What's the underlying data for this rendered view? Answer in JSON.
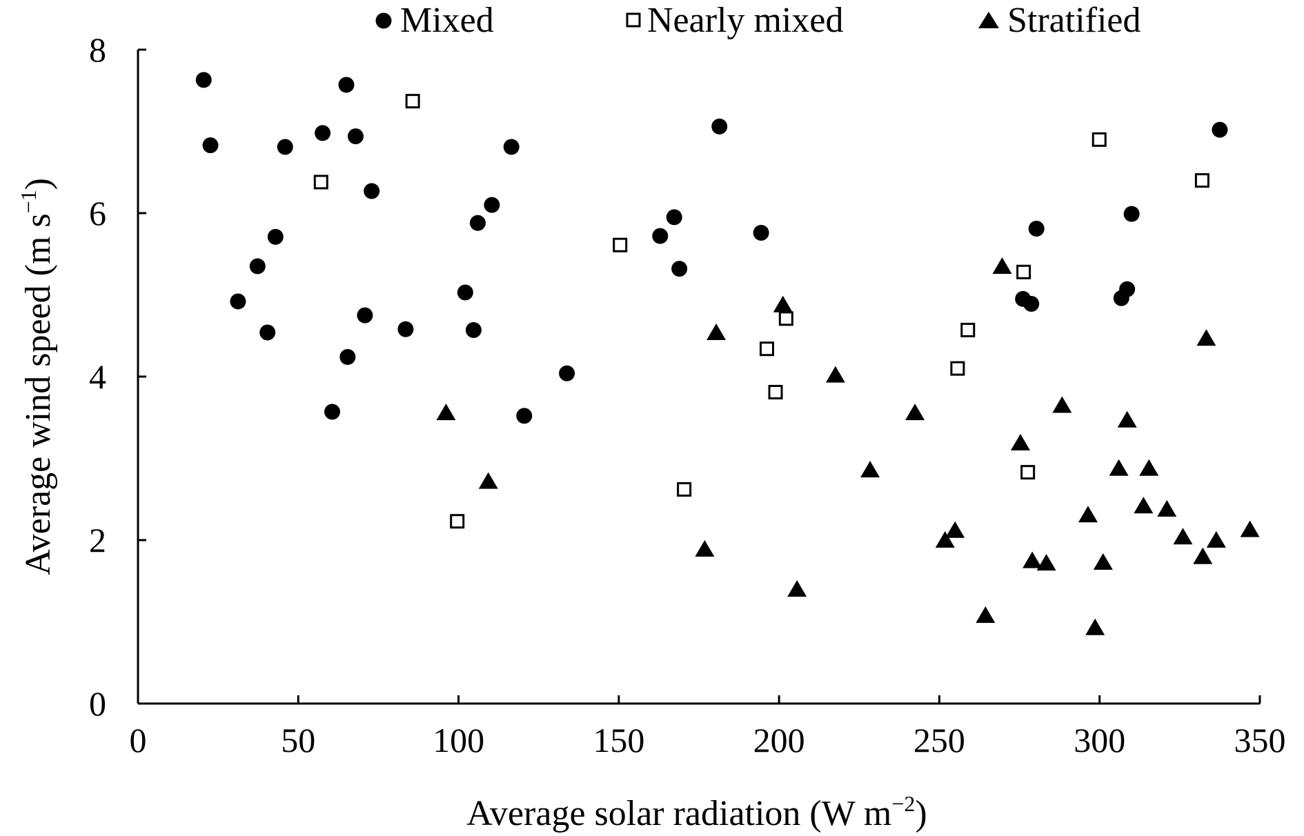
{
  "chart_data": {
    "type": "scatter",
    "title": "",
    "xlabel": "Average solar radiation (W m",
    "xlabel_sup": "−2",
    "xlabel_close": ")",
    "ylabel": "Average wind speed (m s",
    "ylabel_sup": "−1",
    "ylabel_close": ")",
    "xlim": [
      0,
      350
    ],
    "ylim": [
      0,
      8
    ],
    "xticks": [
      0,
      50,
      100,
      150,
      200,
      250,
      300,
      350
    ],
    "yticks": [
      0,
      2,
      4,
      6,
      8
    ],
    "xtick_labels": [
      "0",
      "50",
      "100",
      "150",
      "200",
      "250",
      "300",
      "350"
    ],
    "ytick_labels": [
      "0",
      "2",
      "4",
      "6",
      "8"
    ],
    "grid": false,
    "legend_position": "top",
    "colors": {
      "marker": "#000000",
      "background": "#ffffff"
    },
    "series": [
      {
        "name": "Mixed",
        "marker": "circle-filled",
        "points": [
          [
            20.5,
            7.63
          ],
          [
            22.6,
            6.83
          ],
          [
            31.2,
            4.92
          ],
          [
            37.3,
            5.35
          ],
          [
            40.4,
            4.54
          ],
          [
            42.9,
            5.71
          ],
          [
            45.9,
            6.81
          ],
          [
            57.6,
            6.98
          ],
          [
            60.6,
            3.57
          ],
          [
            65.0,
            7.57
          ],
          [
            65.4,
            4.24
          ],
          [
            67.9,
            6.94
          ],
          [
            70.8,
            4.75
          ],
          [
            72.9,
            6.27
          ],
          [
            83.5,
            4.58
          ],
          [
            102.1,
            5.03
          ],
          [
            104.7,
            4.57
          ],
          [
            106.0,
            5.88
          ],
          [
            110.4,
            6.1
          ],
          [
            116.5,
            6.81
          ],
          [
            120.5,
            3.52
          ],
          [
            133.8,
            4.04
          ],
          [
            162.9,
            5.72
          ],
          [
            167.3,
            5.95
          ],
          [
            168.9,
            5.32
          ],
          [
            181.4,
            7.06
          ],
          [
            194.4,
            5.76
          ],
          [
            276.1,
            4.95
          ],
          [
            278.7,
            4.89
          ],
          [
            280.3,
            5.81
          ],
          [
            306.8,
            4.96
          ],
          [
            308.6,
            5.07
          ],
          [
            310.0,
            5.99
          ],
          [
            337.5,
            7.02
          ]
        ]
      },
      {
        "name": "Nearly mixed",
        "marker": "square-open",
        "points": [
          [
            57.1,
            6.38
          ],
          [
            85.7,
            7.37
          ],
          [
            99.6,
            2.23
          ],
          [
            150.4,
            5.61
          ],
          [
            170.4,
            2.62
          ],
          [
            196.2,
            4.34
          ],
          [
            198.9,
            3.81
          ],
          [
            202.2,
            4.71
          ],
          [
            255.7,
            4.1
          ],
          [
            258.9,
            4.57
          ],
          [
            276.3,
            5.28
          ],
          [
            277.6,
            2.83
          ],
          [
            299.9,
            6.9
          ],
          [
            332.0,
            6.4
          ]
        ]
      },
      {
        "name": "Stratified",
        "marker": "triangle-filled",
        "points": [
          [
            96.1,
            3.56
          ],
          [
            109.3,
            2.72
          ],
          [
            176.8,
            1.89
          ],
          [
            180.4,
            4.54
          ],
          [
            201.2,
            4.88
          ],
          [
            205.6,
            1.4
          ],
          [
            217.6,
            4.02
          ],
          [
            228.4,
            2.86
          ],
          [
            242.4,
            3.56
          ],
          [
            251.8,
            2.0
          ],
          [
            254.9,
            2.12
          ],
          [
            264.4,
            1.08
          ],
          [
            269.6,
            5.35
          ],
          [
            275.3,
            3.19
          ],
          [
            279.0,
            1.75
          ],
          [
            283.4,
            1.72
          ],
          [
            288.3,
            3.65
          ],
          [
            296.4,
            2.31
          ],
          [
            298.6,
            0.93
          ],
          [
            301.1,
            1.73
          ],
          [
            306.0,
            2.88
          ],
          [
            308.6,
            3.47
          ],
          [
            313.7,
            2.42
          ],
          [
            315.4,
            2.88
          ],
          [
            321.0,
            2.38
          ],
          [
            326.0,
            2.04
          ],
          [
            332.2,
            1.8
          ],
          [
            333.3,
            4.47
          ],
          [
            336.4,
            2.0
          ],
          [
            346.9,
            2.13
          ]
        ]
      }
    ]
  }
}
